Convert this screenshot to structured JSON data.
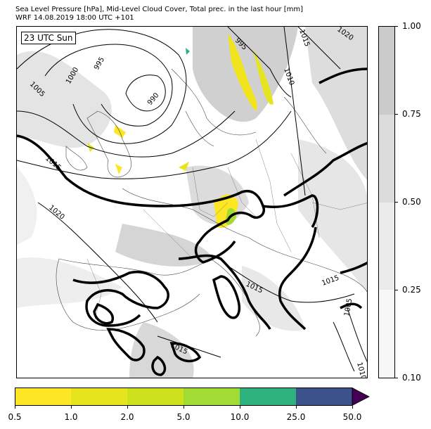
{
  "title_line1": "Sea Level Pressure [hPa], Mid-Level Cloud Cover, Total prec. in the last hour [mm]",
  "title_line2": "WRF 14.08.2019 18:00 UTC +101",
  "time_label": "23 UTC Sun",
  "isobar_labels": [
    "1005",
    "1000",
    "995",
    "990",
    "995",
    "1015",
    "1010",
    "1020",
    "1015",
    "1020",
    "1015",
    "1015",
    "1015",
    "1005",
    "1010"
  ],
  "cloud_colorbar": {
    "ticks": [
      "0.10",
      "0.25",
      "0.50",
      "0.75",
      "1.00"
    ],
    "colors": [
      "#f7f7f7",
      "#ebebeb",
      "#dcdcdc",
      "#cbcbcb"
    ]
  },
  "precip_colorbar": {
    "ticks": [
      "0.5",
      "1.0",
      "2.0",
      "5.0",
      "10.0",
      "25.0",
      "50.0"
    ],
    "colors": [
      "#fde725",
      "#e6e41c",
      "#cde11d",
      "#a2db34",
      "#2db27d",
      "#3b528b",
      "#440154"
    ]
  }
}
